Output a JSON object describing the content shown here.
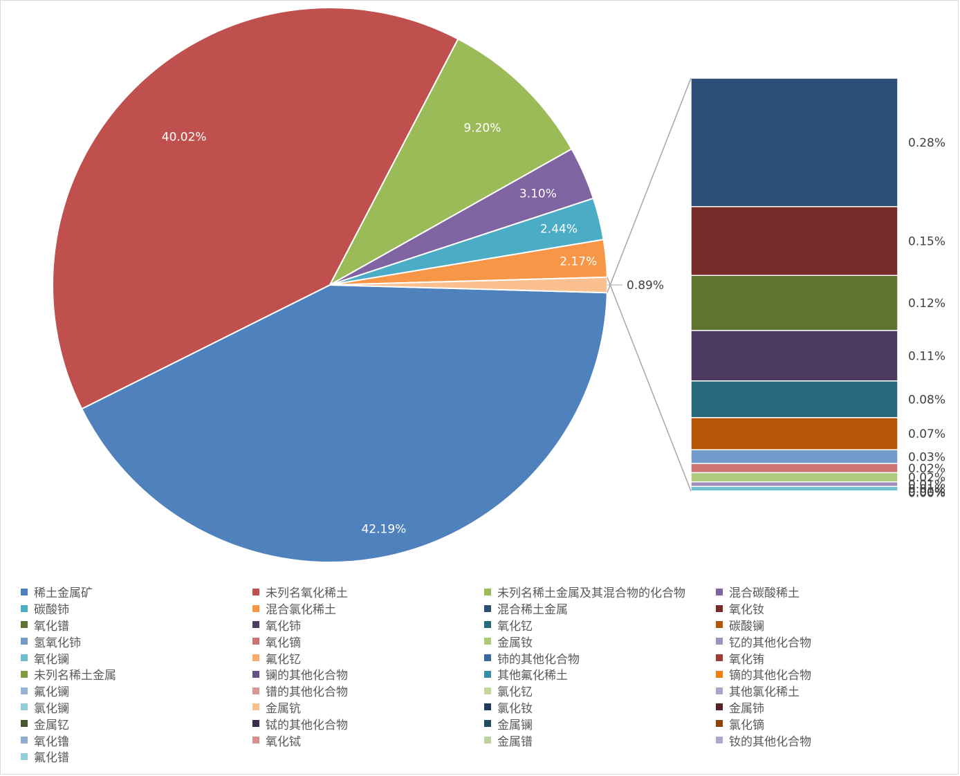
{
  "chart_data": {
    "type": "pie",
    "title": "",
    "categories": [
      "稀土金属矿",
      "未列名氧化稀土",
      "未列名稀土金属及其混合物的化合物",
      "混合碳酸稀土",
      "碳酸铈",
      "混合氯化稀土",
      "混合稀土金属",
      "氧化钕",
      "氧化镨",
      "氧化铈",
      "氧化钇",
      "碳酸镧",
      "氢氧化铈",
      "氧化镝",
      "金属钕",
      "钇的其他化合物",
      "氧化镧",
      "氟化钇",
      "铈的其他化合物",
      "氧化铕",
      "未列名稀土金属",
      "镧的其他化合物",
      "其他氟化稀土",
      "镝的其他化合物",
      "氟化镧",
      "镨的其他化合物",
      "氯化钇",
      "其他氯化稀土",
      "氯化镧",
      "金属钪",
      "氯化钕",
      "金属铈",
      "金属钇",
      "铽的其他化合物",
      "金属镧",
      "氯化镝",
      "氧化镥",
      "氧化铽",
      "金属镨",
      "钕的其他化合物",
      "氟化镨"
    ],
    "pie_values": [
      42.19,
      40.02,
      9.2,
      3.1,
      2.44,
      2.17,
      0.89
    ],
    "pie_labels": [
      "42.19%",
      "40.02%",
      "9.20%",
      "3.10%",
      "2.44%",
      "2.17%",
      "0.89%"
    ],
    "bar_categories": [
      "混合稀土金属",
      "氧化钕",
      "氧化镨",
      "氧化铈",
      "氧化钇",
      "碳酸镧",
      "氢氧化铈",
      "氧化镝",
      "金属钕",
      "钇的其他化合物",
      "氧化镧",
      "氟化钇",
      "铈的其他化合物"
    ],
    "bar_values": [
      0.28,
      0.15,
      0.12,
      0.11,
      0.08,
      0.07,
      0.03,
      0.02,
      0.02,
      0.01,
      0.01,
      0.0,
      0.0
    ],
    "bar_labels": [
      "0.28%",
      "0.15%",
      "0.12%",
      "0.11%",
      "0.08%",
      "0.07%",
      "0.03%",
      "0.02%",
      "0.02%",
      "0.01%",
      "0.01%",
      "0.00%",
      "0.00%"
    ],
    "colors": [
      "#4F81BD",
      "#C0504D",
      "#9BBB59",
      "#8064A2",
      "#4BACC6",
      "#F79646",
      "#2C4D75",
      "#772C2A",
      "#5F7530",
      "#4D3B62",
      "#276A7C",
      "#B65708",
      "#729ACA",
      "#CD7371",
      "#AFC97A",
      "#A18FBC",
      "#6FBDD1",
      "#F9AB6B",
      "#3A679C",
      "#9F3B38",
      "#7F9D40",
      "#664F83",
      "#3590A7",
      "#F37E0B",
      "#95B3D7",
      "#D99694",
      "#C3D69B",
      "#B3A2C7",
      "#93CDDD",
      "#FAC090",
      "#1F3A5F",
      "#5A2120",
      "#48582A",
      "#3A2C4A",
      "#1D505E",
      "#8A4206",
      "#8EADD3",
      "#DB8F8D",
      "#BCD298",
      "#B4A7CB",
      "#93CFDE"
    ],
    "legend_position": "bottom"
  }
}
